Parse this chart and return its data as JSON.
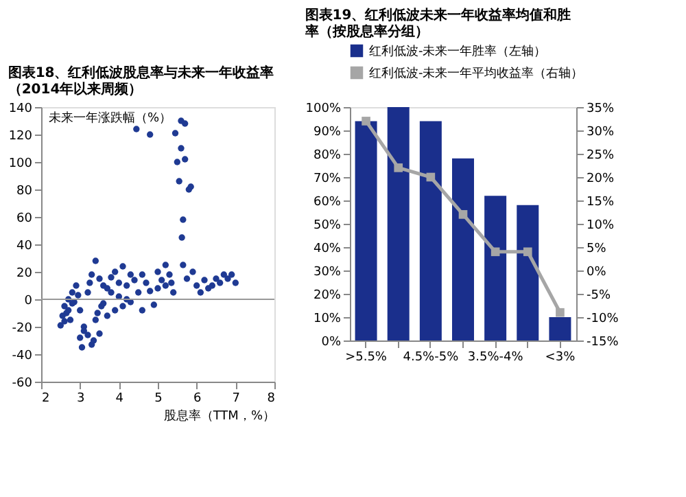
{
  "chart_data": [
    {
      "type": "scatter",
      "title": "图表18、红利低波股息率与未来一年收益率（2014年以来周频）",
      "xlabel": "股息率（TTM，%）",
      "ylabel": "未来一年涨跌幅（%）",
      "color": "#1f3a93",
      "x": [
        2.5,
        2.55,
        2.6,
        2.6,
        2.65,
        2.7,
        2.7,
        2.75,
        2.8,
        2.8,
        2.85,
        2.9,
        2.95,
        3.0,
        3.0,
        3.05,
        3.1,
        3.1,
        3.2,
        3.2,
        3.25,
        3.3,
        3.3,
        3.35,
        3.4,
        3.4,
        3.45,
        3.5,
        3.5,
        3.55,
        3.6,
        3.6,
        3.7,
        3.7,
        3.8,
        3.8,
        3.9,
        3.9,
        4.0,
        4.0,
        4.1,
        4.1,
        4.2,
        4.2,
        4.3,
        4.3,
        4.4,
        4.45,
        4.5,
        4.6,
        4.6,
        4.7,
        4.8,
        4.8,
        4.9,
        5.0,
        5.0,
        5.1,
        5.2,
        5.2,
        5.3,
        5.35,
        5.4,
        5.45,
        5.5,
        5.55,
        5.6,
        5.6,
        5.62,
        5.65,
        5.65,
        5.7,
        5.7,
        5.75,
        5.8,
        5.85,
        5.9,
        6.0,
        6.1,
        6.2,
        6.3,
        6.4,
        6.5,
        6.6,
        6.7,
        6.8,
        6.9,
        7.0
      ],
      "values": [
        -19,
        -12,
        -16,
        -5,
        -10,
        -8,
        0,
        -15,
        -3,
        5,
        -2,
        10,
        3,
        -28,
        -8,
        -35,
        -20,
        -23,
        5,
        -26,
        12,
        -33,
        18,
        -30,
        -15,
        28,
        -10,
        15,
        -25,
        -5,
        -3,
        10,
        8,
        -12,
        5,
        16,
        -8,
        20,
        2,
        12,
        -5,
        24,
        10,
        0,
        18,
        -2,
        14,
        124,
        5,
        18,
        -8,
        12,
        120,
        6,
        -4,
        20,
        8,
        14,
        10,
        25,
        18,
        12,
        5,
        121,
        100,
        86,
        130,
        110,
        45,
        58,
        25,
        102,
        128,
        15,
        80,
        82,
        20,
        10,
        5,
        14,
        8,
        10,
        15,
        12,
        18,
        15,
        18,
        12
      ],
      "xlim": [
        2,
        8
      ],
      "xticks": [
        2,
        3,
        4,
        5,
        6,
        7,
        8
      ],
      "ylim": [
        -60,
        140
      ],
      "yticks": [
        -60,
        -40,
        -20,
        0,
        20,
        40,
        60,
        80,
        100,
        120,
        140
      ],
      "grid": false,
      "marker": "circle",
      "ref_lines": [
        {
          "axis": "y",
          "value": 0,
          "color": "#999999"
        }
      ]
    },
    {
      "type": "bar",
      "title": "图表19、红利低波未来一年收益率均值和胜率（按股息率分组）",
      "legend": "top",
      "categories": [
        ">5.5%",
        null,
        "4.5%-5%",
        null,
        "3.5%-4%",
        null,
        "<3%"
      ],
      "series": [
        {
          "name": "红利低波-未来一年胜率（左轴）",
          "type": "bar",
          "color": "#1a2f8c",
          "values": [
            94,
            100,
            94,
            78,
            62,
            58,
            10
          ]
        },
        {
          "name": "红利低波-未来一年平均收益率（右轴）",
          "type": "line",
          "axis": "y2",
          "color": "#a6a6a6",
          "marker": "square",
          "values": [
            32,
            22,
            20,
            12,
            4,
            4,
            -9
          ]
        }
      ],
      "ylim": [
        0,
        100
      ],
      "yticks": [
        {
          "value": 0,
          "label": "0%"
        },
        {
          "value": 10,
          "label": "10%"
        },
        {
          "value": 20,
          "label": "20%"
        },
        {
          "value": 30,
          "label": "30%"
        },
        {
          "value": 40,
          "label": "40%"
        },
        {
          "value": 50,
          "label": "50%"
        },
        {
          "value": 60,
          "label": "60%"
        },
        {
          "value": 70,
          "label": "70%"
        },
        {
          "value": 80,
          "label": "80%"
        },
        {
          "value": 90,
          "label": "90%"
        },
        {
          "value": 100,
          "label": "100%"
        }
      ],
      "y2lim": [
        -15,
        35
      ],
      "y2ticks": [
        {
          "value": -15,
          "label": "-15%"
        },
        {
          "value": -10,
          "label": "-10%"
        },
        {
          "value": -5,
          "label": "-5%"
        },
        {
          "value": 0,
          "label": "0%"
        },
        {
          "value": 5,
          "label": "5%"
        },
        {
          "value": 10,
          "label": "10%"
        },
        {
          "value": 15,
          "label": "15%"
        },
        {
          "value": 20,
          "label": "20%"
        },
        {
          "value": 25,
          "label": "25%"
        },
        {
          "value": 30,
          "label": "30%"
        },
        {
          "value": 35,
          "label": "35%"
        }
      ],
      "grid": false
    }
  ]
}
